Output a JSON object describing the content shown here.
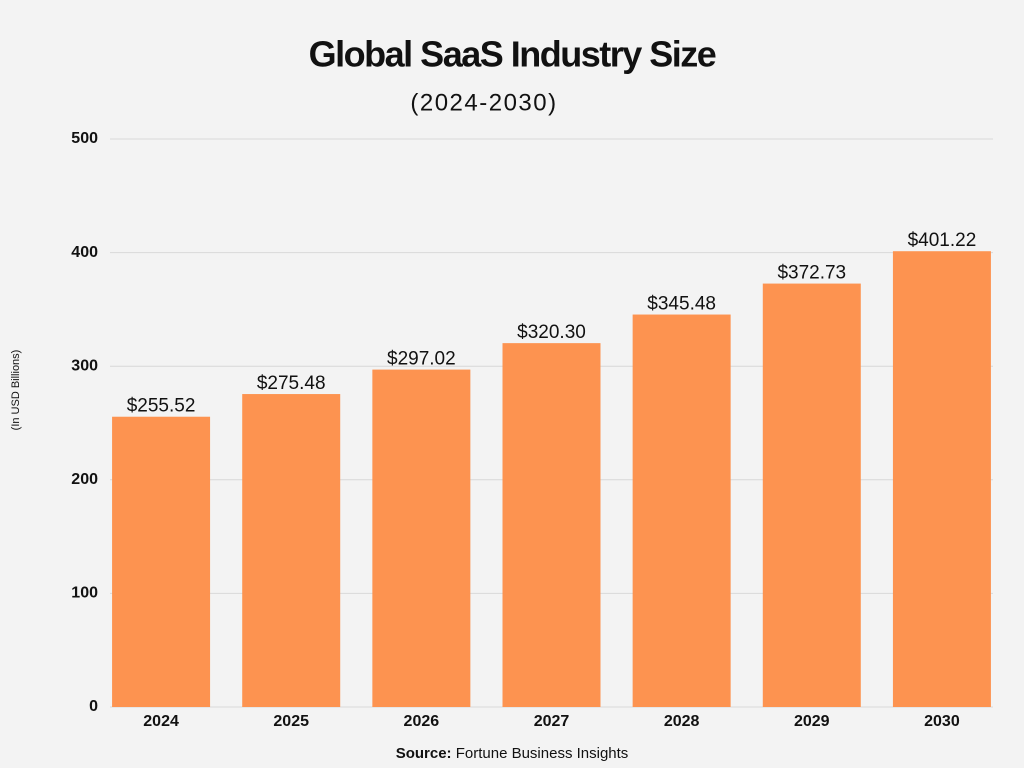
{
  "chart_data": {
    "type": "bar",
    "title": "Global SaaS Industry Size",
    "subtitle": "(2024-2030)",
    "y_label": "(In USD Billions)",
    "source": {
      "label": "Source:",
      "text": "Fortune Business Insights"
    },
    "categories": [
      "2024",
      "2025",
      "2026",
      "2027",
      "2028",
      "2029",
      "2030"
    ],
    "values": [
      255.52,
      275.48,
      297.02,
      320.3,
      345.48,
      372.73,
      401.22
    ],
    "value_labels": [
      "$255.52",
      "$275.48",
      "$297.02",
      "$320.30",
      "$345.48",
      "$372.73",
      "$401.22"
    ],
    "color": "#fd9350",
    "ylim": [
      0,
      500
    ],
    "yticks": [
      0,
      100,
      200,
      300,
      400,
      500
    ],
    "grid": true
  }
}
